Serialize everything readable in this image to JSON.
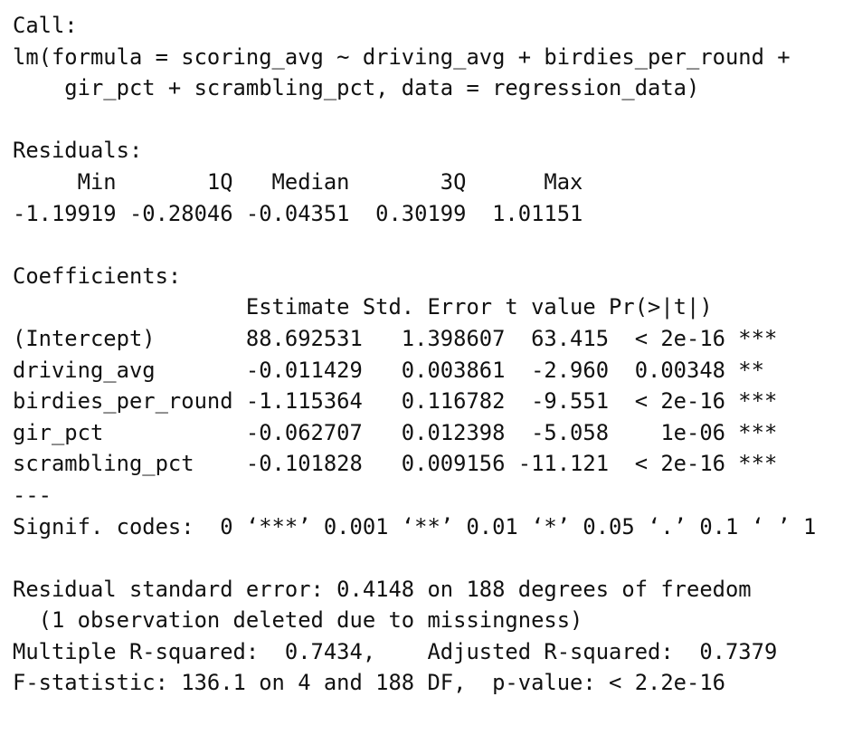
{
  "call": {
    "header": "Call:",
    "formula_line1": "lm(formula = scoring_avg ~ driving_avg + birdies_per_round +",
    "formula_line2": "    gir_pct + scrambling_pct, data = regression_data)"
  },
  "residuals": {
    "header": "Residuals:",
    "columns_line": "     Min       1Q   Median       3Q      Max ",
    "values_line": "-1.19919 -0.28046 -0.04351  0.30199  1.01151 ",
    "summary": [
      {
        "stat": "Min",
        "value": "-1.19919"
      },
      {
        "stat": "1Q",
        "value": "-0.28046"
      },
      {
        "stat": "Median",
        "value": "-0.04351"
      },
      {
        "stat": "3Q",
        "value": "0.30199"
      },
      {
        "stat": "Max",
        "value": "1.01151"
      }
    ]
  },
  "coefficients": {
    "header": "Coefficients:",
    "columns_line": "                  Estimate Std. Error t value Pr(>|t|)    ",
    "rows": [
      {
        "line": "(Intercept)       88.692531   1.398607  63.415  < 2e-16 ***",
        "term": "(Intercept)",
        "estimate": "88.692531",
        "std_error": "1.398607",
        "t_value": "63.415",
        "p_value": "< 2e-16",
        "signif": "***"
      },
      {
        "line": "driving_avg       -0.011429   0.003861  -2.960  0.00348 ** ",
        "term": "driving_avg",
        "estimate": "-0.011429",
        "std_error": "0.003861",
        "t_value": "-2.960",
        "p_value": "0.00348",
        "signif": "**"
      },
      {
        "line": "birdies_per_round -1.115364   0.116782  -9.551  < 2e-16 ***",
        "term": "birdies_per_round",
        "estimate": "-1.115364",
        "std_error": "0.116782",
        "t_value": "-9.551",
        "p_value": "< 2e-16",
        "signif": "***"
      },
      {
        "line": "gir_pct           -0.062707   0.012398  -5.058    1e-06 ***",
        "term": "gir_pct",
        "estimate": "-0.062707",
        "std_error": "0.012398",
        "t_value": "-5.058",
        "p_value": "1e-06",
        "signif": "***"
      },
      {
        "line": "scrambling_pct    -0.101828   0.009156 -11.121  < 2e-16 ***",
        "term": "scrambling_pct",
        "estimate": "-0.101828",
        "std_error": "0.009156",
        "t_value": "-11.121",
        "p_value": "< 2e-16",
        "signif": "***"
      }
    ],
    "separator": "---",
    "signif_codes": "Signif. codes:  0 ‘***’ 0.001 ‘**’ 0.01 ‘*’ 0.05 ‘.’ 0.1 ‘ ’ 1"
  },
  "model_summary": {
    "residual_se_line": "Residual standard error: 0.4148 on 188 degrees of freedom",
    "missingness_line": "  (1 observation deleted due to missingness)",
    "r_squared_line": "Multiple R-squared:  0.7434,\tAdjusted R-squared:  0.7379 ",
    "f_statistic_line": "F-statistic: 136.1 on 4 and 188 DF,  p-value: < 2.2e-16"
  }
}
